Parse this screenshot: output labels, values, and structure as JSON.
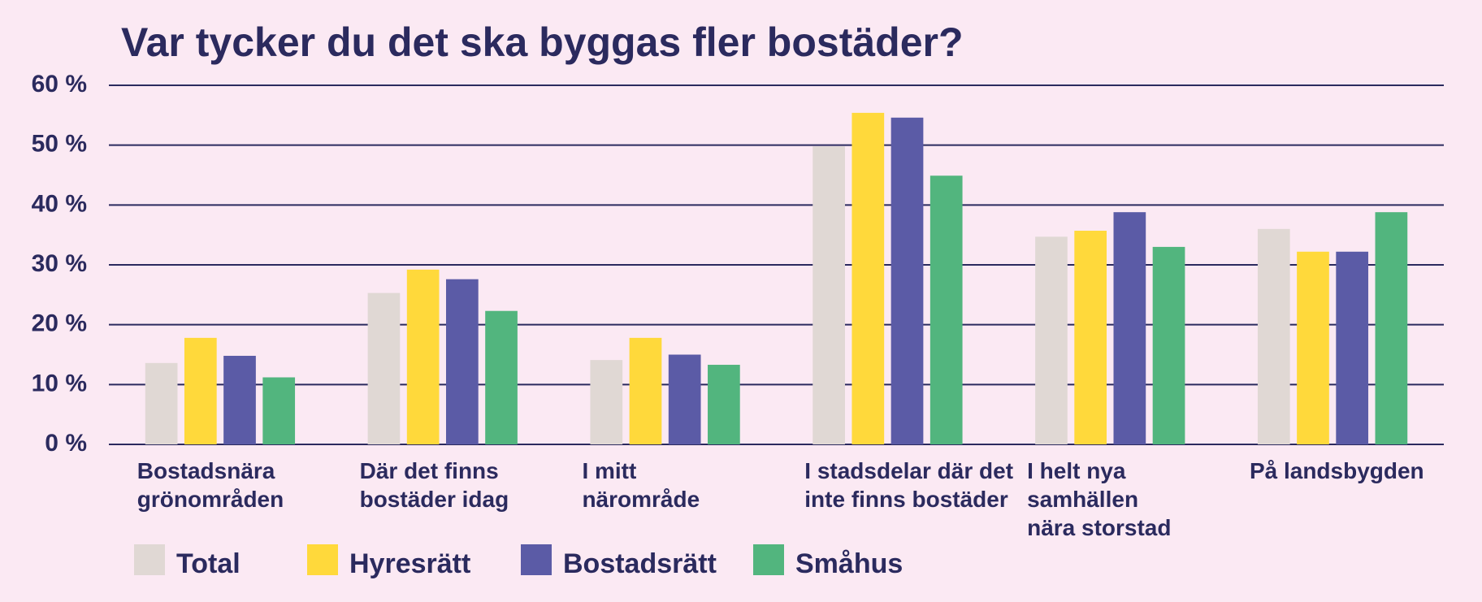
{
  "chart_data": {
    "type": "bar",
    "title": "Var tycker du det ska byggas fler bostäder?",
    "categories": [
      "Bostadsnära\ngrönområden",
      "Där det finns\nbostäder idag",
      "I mitt\nnärområde",
      "I stadsdelar där det\ninte finns bostäder",
      "I helt nya\nsamhällen\nnära storstad",
      "På landsbygden"
    ],
    "series": [
      {
        "name": "Total",
        "color": "#e0d8d4",
        "values": [
          13.6,
          25.3,
          14.1,
          49.8,
          34.7,
          36
        ]
      },
      {
        "name": "Hyresrätt",
        "color": "#ffd93b",
        "values": [
          17.8,
          29.2,
          17.8,
          55.4,
          35.7,
          32.2
        ]
      },
      {
        "name": "Bostadsrätt",
        "color": "#5b5ba6",
        "values": [
          14.8,
          27.6,
          15,
          54.6,
          38.8,
          32.2
        ]
      },
      {
        "name": "Småhus",
        "color": "#52b57e",
        "values": [
          11.2,
          22.3,
          13.3,
          44.9,
          33,
          38.8
        ]
      }
    ],
    "ylim": [
      0,
      60
    ],
    "yticks": [
      {
        "value": 0,
        "label": "0 %"
      },
      {
        "value": 10,
        "label": "10 %"
      },
      {
        "value": 20,
        "label": "20 %"
      },
      {
        "value": 30,
        "label": "30 %"
      },
      {
        "value": 40,
        "label": "40 %"
      },
      {
        "value": 50,
        "label": "50 %"
      },
      {
        "value": 60,
        "label": "60 %"
      }
    ],
    "grid": true
  }
}
